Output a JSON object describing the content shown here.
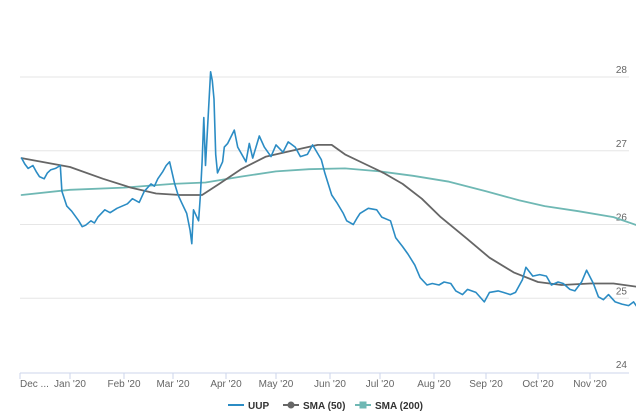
{
  "chart_data": {
    "type": "line",
    "title": "",
    "xlabel": "",
    "ylabel": "",
    "ylim": [
      24,
      28.5
    ],
    "yticks": [
      24,
      25,
      26,
      27,
      28
    ],
    "x_tick_labels": [
      "Dec ...",
      "Jan '20",
      "Feb '20",
      "Mar '20",
      "Apr '20",
      "May '20",
      "Jun '20",
      "Jul '20",
      "Aug '20",
      "Sep '20",
      "Oct '20",
      "Nov '20"
    ],
    "x_range": [
      "2019-12-01",
      "2020-12-04"
    ],
    "grid": "horizontal",
    "legend_position": "bottom-center",
    "series": [
      {
        "name": "UUP",
        "color": "#2b8cc4",
        "marker": "none",
        "points": [
          [
            "2019-12-02",
            26.9
          ],
          [
            "2019-12-04",
            26.82
          ],
          [
            "2019-12-06",
            26.76
          ],
          [
            "2019-12-09",
            26.8
          ],
          [
            "2019-12-11",
            26.72
          ],
          [
            "2019-12-13",
            26.65
          ],
          [
            "2019-12-16",
            26.62
          ],
          [
            "2019-12-18",
            26.7
          ],
          [
            "2019-12-20",
            26.74
          ],
          [
            "2019-12-23",
            26.76
          ],
          [
            "2019-12-26",
            26.8
          ],
          [
            "2019-12-27",
            26.45
          ],
          [
            "2019-12-30",
            26.25
          ],
          [
            "2020-01-02",
            26.18
          ],
          [
            "2020-01-06",
            26.05
          ],
          [
            "2020-01-08",
            25.97
          ],
          [
            "2020-01-10",
            25.99
          ],
          [
            "2020-01-13",
            26.05
          ],
          [
            "2020-01-15",
            26.02
          ],
          [
            "2020-01-17",
            26.1
          ],
          [
            "2020-01-21",
            26.2
          ],
          [
            "2020-01-24",
            26.16
          ],
          [
            "2020-01-28",
            26.22
          ],
          [
            "2020-02-03",
            26.28
          ],
          [
            "2020-02-06",
            26.35
          ],
          [
            "2020-02-10",
            26.3
          ],
          [
            "2020-02-13",
            26.45
          ],
          [
            "2020-02-17",
            26.55
          ],
          [
            "2020-02-19",
            26.52
          ],
          [
            "2020-02-21",
            26.62
          ],
          [
            "2020-02-24",
            26.72
          ],
          [
            "2020-02-26",
            26.8
          ],
          [
            "2020-02-28",
            26.85
          ],
          [
            "2020-03-02",
            26.55
          ],
          [
            "2020-03-04",
            26.4
          ],
          [
            "2020-03-06",
            26.3
          ],
          [
            "2020-03-09",
            26.15
          ],
          [
            "2020-03-11",
            25.92
          ],
          [
            "2020-03-12",
            25.74
          ],
          [
            "2020-03-13",
            26.2
          ],
          [
            "2020-03-16",
            26.05
          ],
          [
            "2020-03-17",
            26.4
          ],
          [
            "2020-03-18",
            26.85
          ],
          [
            "2020-03-19",
            27.45
          ],
          [
            "2020-03-20",
            26.8
          ],
          [
            "2020-03-23",
            28.07
          ],
          [
            "2020-03-24",
            27.95
          ],
          [
            "2020-03-25",
            27.7
          ],
          [
            "2020-03-26",
            26.95
          ],
          [
            "2020-03-27",
            26.7
          ],
          [
            "2020-03-30",
            26.85
          ],
          [
            "2020-03-31",
            27.05
          ],
          [
            "2020-04-02",
            27.1
          ],
          [
            "2020-04-06",
            27.28
          ],
          [
            "2020-04-08",
            27.05
          ],
          [
            "2020-04-13",
            26.85
          ],
          [
            "2020-04-15",
            27.1
          ],
          [
            "2020-04-17",
            26.9
          ],
          [
            "2020-04-21",
            27.2
          ],
          [
            "2020-04-24",
            27.05
          ],
          [
            "2020-04-28",
            26.92
          ],
          [
            "2020-05-01",
            27.08
          ],
          [
            "2020-05-05",
            26.98
          ],
          [
            "2020-05-08",
            27.12
          ],
          [
            "2020-05-12",
            27.05
          ],
          [
            "2020-05-15",
            26.92
          ],
          [
            "2020-05-19",
            26.95
          ],
          [
            "2020-05-22",
            27.08
          ],
          [
            "2020-05-27",
            26.88
          ],
          [
            "2020-05-29",
            26.7
          ],
          [
            "2020-06-02",
            26.4
          ],
          [
            "2020-06-05",
            26.3
          ],
          [
            "2020-06-09",
            26.15
          ],
          [
            "2020-06-11",
            26.05
          ],
          [
            "2020-06-15",
            26.0
          ],
          [
            "2020-06-17",
            26.08
          ],
          [
            "2020-06-19",
            26.15
          ],
          [
            "2020-06-24",
            26.22
          ],
          [
            "2020-06-29",
            26.2
          ],
          [
            "2020-07-02",
            26.1
          ],
          [
            "2020-07-07",
            26.05
          ],
          [
            "2020-07-10",
            25.82
          ],
          [
            "2020-07-14",
            25.7
          ],
          [
            "2020-07-17",
            25.6
          ],
          [
            "2020-07-21",
            25.45
          ],
          [
            "2020-07-24",
            25.28
          ],
          [
            "2020-07-28",
            25.18
          ],
          [
            "2020-07-31",
            25.2
          ],
          [
            "2020-08-04",
            25.18
          ],
          [
            "2020-08-07",
            25.22
          ],
          [
            "2020-08-11",
            25.2
          ],
          [
            "2020-08-14",
            25.1
          ],
          [
            "2020-08-18",
            25.05
          ],
          [
            "2020-08-21",
            25.12
          ],
          [
            "2020-08-26",
            25.08
          ],
          [
            "2020-08-31",
            24.95
          ],
          [
            "2020-09-03",
            25.08
          ],
          [
            "2020-09-08",
            25.1
          ],
          [
            "2020-09-11",
            25.08
          ],
          [
            "2020-09-15",
            25.05
          ],
          [
            "2020-09-18",
            25.08
          ],
          [
            "2020-09-22",
            25.25
          ],
          [
            "2020-09-24",
            25.42
          ],
          [
            "2020-09-28",
            25.3
          ],
          [
            "2020-10-02",
            25.32
          ],
          [
            "2020-10-06",
            25.3
          ],
          [
            "2020-10-09",
            25.18
          ],
          [
            "2020-10-13",
            25.22
          ],
          [
            "2020-10-16",
            25.2
          ],
          [
            "2020-10-20",
            25.12
          ],
          [
            "2020-10-23",
            25.1
          ],
          [
            "2020-10-27",
            25.22
          ],
          [
            "2020-10-30",
            25.38
          ],
          [
            "2020-11-03",
            25.2
          ],
          [
            "2020-11-06",
            25.02
          ],
          [
            "2020-11-09",
            24.98
          ],
          [
            "2020-11-12",
            25.05
          ],
          [
            "2020-11-16",
            24.95
          ],
          [
            "2020-11-20",
            24.92
          ],
          [
            "2020-11-24",
            24.9
          ],
          [
            "2020-11-27",
            24.95
          ],
          [
            "2020-12-01",
            24.82
          ],
          [
            "2020-12-03",
            24.78
          ],
          [
            "2020-12-04",
            24.8
          ]
        ]
      },
      {
        "name": "SMA (50)",
        "color": "#666666",
        "marker": "circle",
        "points": [
          [
            "2019-12-02",
            26.9
          ],
          [
            "2020-01-01",
            26.78
          ],
          [
            "2020-01-20",
            26.62
          ],
          [
            "2020-02-05",
            26.5
          ],
          [
            "2020-02-20",
            26.42
          ],
          [
            "2020-03-05",
            26.4
          ],
          [
            "2020-03-18",
            26.4
          ],
          [
            "2020-03-28",
            26.55
          ],
          [
            "2020-04-10",
            26.75
          ],
          [
            "2020-04-25",
            26.92
          ],
          [
            "2020-05-10",
            27.0
          ],
          [
            "2020-05-25",
            27.08
          ],
          [
            "2020-06-02",
            27.08
          ],
          [
            "2020-06-10",
            26.95
          ],
          [
            "2020-06-22",
            26.82
          ],
          [
            "2020-07-03",
            26.7
          ],
          [
            "2020-07-14",
            26.55
          ],
          [
            "2020-07-25",
            26.35
          ],
          [
            "2020-08-05",
            26.1
          ],
          [
            "2020-08-20",
            25.82
          ],
          [
            "2020-09-03",
            25.55
          ],
          [
            "2020-09-17",
            25.35
          ],
          [
            "2020-10-01",
            25.22
          ],
          [
            "2020-10-15",
            25.18
          ],
          [
            "2020-11-01",
            25.2
          ],
          [
            "2020-11-15",
            25.2
          ],
          [
            "2020-12-04",
            25.14
          ]
        ]
      },
      {
        "name": "SMA (200)",
        "color": "#6fb8b4",
        "marker": "square",
        "points": [
          [
            "2019-12-02",
            26.4
          ],
          [
            "2020-01-01",
            26.47
          ],
          [
            "2020-02-01",
            26.5
          ],
          [
            "2020-03-01",
            26.55
          ],
          [
            "2020-03-20",
            26.57
          ],
          [
            "2020-04-10",
            26.65
          ],
          [
            "2020-05-01",
            26.72
          ],
          [
            "2020-05-20",
            26.75
          ],
          [
            "2020-06-10",
            26.76
          ],
          [
            "2020-07-01",
            26.72
          ],
          [
            "2020-07-20",
            26.66
          ],
          [
            "2020-08-10",
            26.58
          ],
          [
            "2020-09-01",
            26.45
          ],
          [
            "2020-09-20",
            26.33
          ],
          [
            "2020-10-05",
            26.25
          ],
          [
            "2020-10-25",
            26.18
          ],
          [
            "2020-11-15",
            26.1
          ],
          [
            "2020-12-04",
            25.95
          ]
        ]
      }
    ]
  }
}
